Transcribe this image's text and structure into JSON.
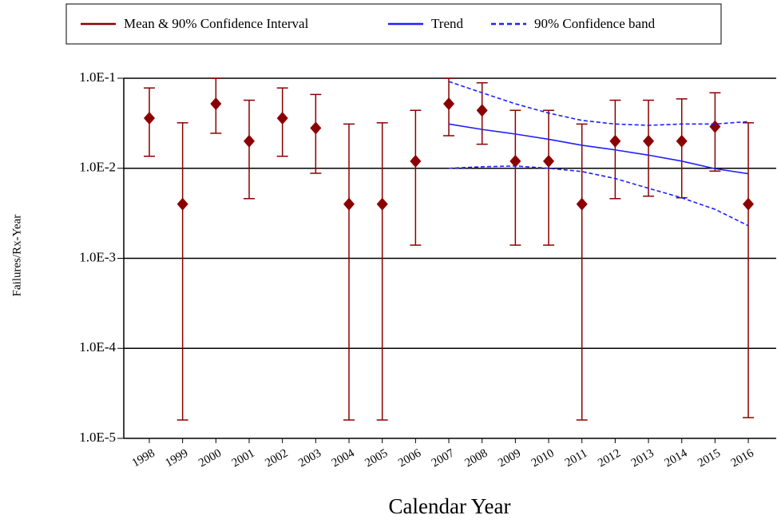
{
  "chart_data": {
    "type": "errorbar",
    "log_y": true,
    "grid": true,
    "x_label": "Calendar Year",
    "y_label": "Failures/Rx-Year",
    "categories": [
      "1998",
      "1999",
      "2000",
      "2001",
      "2002",
      "2003",
      "2004",
      "2005",
      "2006",
      "2007",
      "2008",
      "2009",
      "2010",
      "2011",
      "2012",
      "2013",
      "2014",
      "2015",
      "2016"
    ],
    "ylim": [
      1e-05,
      0.1
    ],
    "yticks": [
      {
        "value": 0.1,
        "label": "1.0E-1"
      },
      {
        "value": 0.01,
        "label": "1.0E-2"
      },
      {
        "value": 0.001,
        "label": "1.0E-3"
      },
      {
        "value": 0.0001,
        "label": "1.0E-4"
      },
      {
        "value": 1e-05,
        "label": "1.0E-5"
      }
    ],
    "series": [
      {
        "name": "Mean & 90% Confidence Interval",
        "color": "#8b0000",
        "values": [
          0.036,
          0.004,
          0.052,
          0.02,
          0.036,
          0.028,
          0.004,
          0.004,
          0.012,
          0.052,
          0.044,
          0.012,
          0.012,
          0.004,
          0.02,
          0.02,
          0.02,
          0.029,
          0.004
        ],
        "lower": [
          0.0136,
          1.6e-05,
          0.0245,
          0.0046,
          0.0136,
          0.0088,
          1.6e-05,
          1.6e-05,
          0.0014,
          0.023,
          0.0185,
          0.0014,
          0.0014,
          1.6e-05,
          0.0046,
          0.0049,
          0.0047,
          0.0093,
          1.7e-05
        ],
        "upper": [
          0.078,
          0.032,
          0.1,
          0.057,
          0.078,
          0.066,
          0.031,
          0.032,
          0.044,
          0.1,
          0.089,
          0.044,
          0.044,
          0.031,
          0.057,
          0.057,
          0.059,
          0.069,
          0.032
        ]
      },
      {
        "name": "Trend",
        "color": "#1f1fff",
        "values": [
          null,
          null,
          null,
          null,
          null,
          null,
          null,
          null,
          null,
          0.031,
          0.027,
          0.024,
          0.021,
          0.018,
          0.016,
          0.014,
          0.012,
          0.0099,
          0.0087
        ]
      },
      {
        "name": "90% Confidence band",
        "color": "#1f1fff",
        "dashed": true,
        "upper": [
          null,
          null,
          null,
          null,
          null,
          null,
          null,
          null,
          null,
          0.092,
          0.069,
          0.052,
          0.041,
          0.034,
          0.031,
          0.03,
          0.031,
          0.031,
          0.033
        ],
        "lower": [
          null,
          null,
          null,
          null,
          null,
          null,
          null,
          null,
          null,
          0.01,
          0.0104,
          0.0106,
          0.01,
          0.0092,
          0.0077,
          0.006,
          0.0047,
          0.0035,
          0.0023
        ]
      }
    ]
  }
}
